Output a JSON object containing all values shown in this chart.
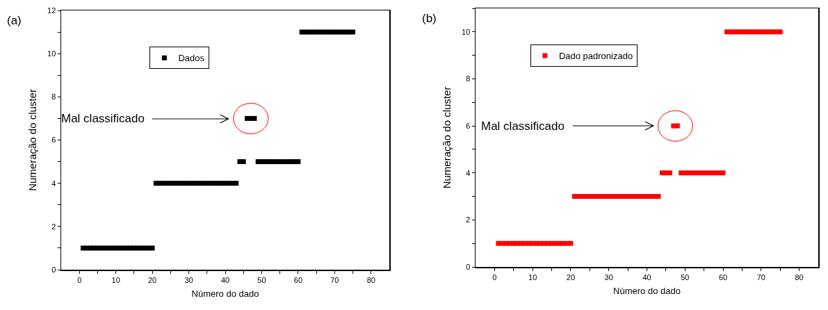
{
  "chart_data": [
    {
      "type": "scatter",
      "xlabel": "Número do dado",
      "ylabel": "Numeração do cluster",
      "annotations": [
        "(a)",
        "Mal classificado"
      ],
      "x": [
        1,
        2,
        3,
        4,
        5,
        6,
        7,
        8,
        9,
        10,
        11,
        12,
        13,
        14,
        15,
        16,
        17,
        18,
        19,
        20,
        21,
        22,
        23,
        24,
        25,
        26,
        27,
        28,
        29,
        30,
        31,
        32,
        33,
        34,
        35,
        36,
        37,
        38,
        39,
        40,
        41,
        42,
        43,
        44,
        45,
        46,
        47,
        48,
        49,
        50,
        51,
        52,
        53,
        54,
        55,
        56,
        57,
        58,
        59,
        60,
        61,
        62,
        63,
        64,
        65,
        66,
        67,
        68,
        69,
        70,
        71,
        72,
        73,
        74,
        75
      ],
      "series": [
        {
          "name": "Dados",
          "color": "#000000",
          "values": [
            1,
            1,
            1,
            1,
            1,
            1,
            1,
            1,
            1,
            1,
            1,
            1,
            1,
            1,
            1,
            1,
            1,
            1,
            1,
            1,
            4,
            4,
            4,
            4,
            4,
            4,
            4,
            4,
            4,
            4,
            4,
            4,
            4,
            4,
            4,
            4,
            4,
            4,
            4,
            4,
            4,
            4,
            4,
            5,
            5,
            7,
            7,
            7,
            5,
            5,
            5,
            5,
            5,
            5,
            5,
            5,
            5,
            5,
            5,
            5,
            11,
            11,
            11,
            11,
            11,
            11,
            11,
            11,
            11,
            11,
            11,
            11,
            11,
            11,
            11
          ]
        }
      ],
      "xlim": [
        -5,
        85
      ],
      "xticks": [
        0,
        {
          "value": 5,
          "label": null
        },
        10,
        {
          "value": 15,
          "label": null
        },
        20,
        {
          "value": 25,
          "label": null
        },
        30,
        {
          "value": 35,
          "label": null
        },
        40,
        {
          "value": 45,
          "label": null
        },
        50,
        {
          "value": 55,
          "label": null
        },
        60,
        {
          "value": 65,
          "label": null
        },
        70,
        {
          "value": 75,
          "label": null
        },
        80
      ],
      "ylim": [
        0,
        12
      ],
      "yticks": [
        0,
        {
          "value": 1,
          "label": null
        },
        2,
        {
          "value": 3,
          "label": null
        },
        4,
        {
          "value": 5,
          "label": null
        },
        6,
        {
          "value": 7,
          "label": null
        },
        8,
        {
          "value": 9,
          "label": null
        },
        10,
        {
          "value": 11,
          "label": null
        },
        12
      ],
      "marker": "square",
      "grid": false,
      "legend": "top left"
    },
    {
      "type": "scatter",
      "xlabel": "Número do dado",
      "ylabel": "Numeração do cluster",
      "annotations": [
        "(b)",
        "Mal classificado"
      ],
      "x": [
        1,
        2,
        3,
        4,
        5,
        6,
        7,
        8,
        9,
        10,
        11,
        12,
        13,
        14,
        15,
        16,
        17,
        18,
        19,
        20,
        21,
        22,
        23,
        24,
        25,
        26,
        27,
        28,
        29,
        30,
        31,
        32,
        33,
        34,
        35,
        36,
        37,
        38,
        39,
        40,
        41,
        42,
        43,
        44,
        45,
        46,
        47,
        48,
        49,
        50,
        51,
        52,
        53,
        54,
        55,
        56,
        57,
        58,
        59,
        60,
        61,
        62,
        63,
        64,
        65,
        66,
        67,
        68,
        69,
        70,
        71,
        72,
        73,
        74,
        75
      ],
      "series": [
        {
          "name": "Dado padronizado",
          "color": "#ff0000",
          "values": [
            1,
            1,
            1,
            1,
            1,
            1,
            1,
            1,
            1,
            1,
            1,
            1,
            1,
            1,
            1,
            1,
            1,
            1,
            1,
            1,
            3,
            3,
            3,
            3,
            3,
            3,
            3,
            3,
            3,
            3,
            3,
            3,
            3,
            3,
            3,
            3,
            3,
            3,
            3,
            3,
            3,
            3,
            3,
            4,
            4,
            4,
            6,
            6,
            4,
            4,
            4,
            4,
            4,
            4,
            4,
            4,
            4,
            4,
            4,
            4,
            10,
            10,
            10,
            10,
            10,
            10,
            10,
            10,
            10,
            10,
            10,
            10,
            10,
            10,
            10
          ]
        }
      ],
      "xlim": [
        -5,
        85
      ],
      "xticks": [
        0,
        {
          "value": 5,
          "label": null
        },
        10,
        {
          "value": 15,
          "label": null
        },
        20,
        {
          "value": 25,
          "label": null
        },
        30,
        {
          "value": 35,
          "label": null
        },
        40,
        {
          "value": 45,
          "label": null
        },
        50,
        {
          "value": 55,
          "label": null
        },
        60,
        {
          "value": 65,
          "label": null
        },
        70,
        {
          "value": 75,
          "label": null
        },
        80
      ],
      "ylim": [
        0,
        11
      ],
      "yticks": [
        0,
        {
          "value": 1,
          "label": null
        },
        2,
        {
          "value": 3,
          "label": null
        },
        4,
        {
          "value": 5,
          "label": null
        },
        6,
        {
          "value": 7,
          "label": null
        },
        8,
        {
          "value": 9,
          "label": null
        },
        10,
        {
          "value": 11,
          "label": null
        }
      ],
      "marker": "square",
      "grid": false,
      "legend": "top left"
    }
  ]
}
